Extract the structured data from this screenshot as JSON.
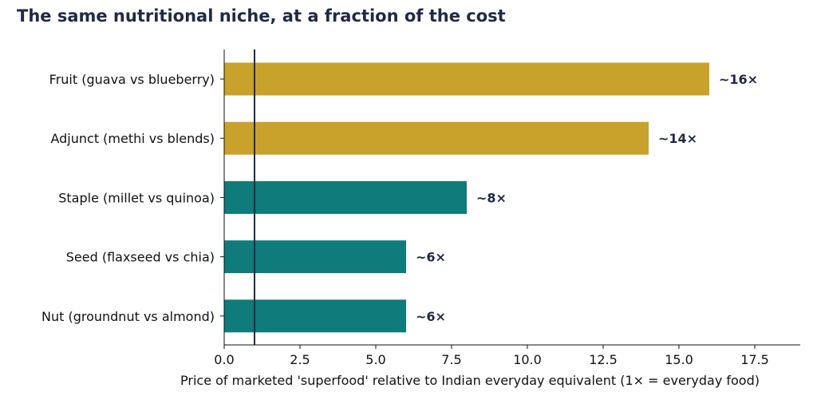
{
  "chart_data": {
    "type": "bar",
    "orientation": "horizontal",
    "title": "The same nutritional niche, at a fraction of the cost",
    "xlabel": "Price of marketed 'superfood' relative to Indian everyday equivalent (1× = everyday food)",
    "ylabel": "",
    "xlim": [
      0,
      19
    ],
    "xticks": [
      0.0,
      2.5,
      5.0,
      7.5,
      10.0,
      12.5,
      15.0,
      17.5
    ],
    "xtick_labels": [
      "0.0",
      "2.5",
      "5.0",
      "7.5",
      "10.0",
      "12.5",
      "15.0",
      "17.5"
    ],
    "categories": [
      "Fruit (guava vs blueberry)",
      "Adjunct (methi vs blends)",
      "Staple (millet vs quinoa)",
      "Seed (flaxseed vs chia)",
      "Nut (groundnut vs almond)"
    ],
    "values": [
      16,
      14,
      8,
      6,
      6
    ],
    "data_labels": [
      "~16×",
      "~14×",
      "~8×",
      "~6×",
      "~6×"
    ],
    "bar_colors": [
      "#c9a22b",
      "#c9a22b",
      "#0f7b7a",
      "#0f7b7a",
      "#0f7b7a"
    ],
    "reference_line": {
      "x": 1,
      "color": "#1f2a44"
    },
    "grid": false,
    "legend": "none",
    "colors": {
      "title": "#1f2a44",
      "data_label": "#1f2a44",
      "text": "#111111",
      "axis": "#111111"
    }
  }
}
